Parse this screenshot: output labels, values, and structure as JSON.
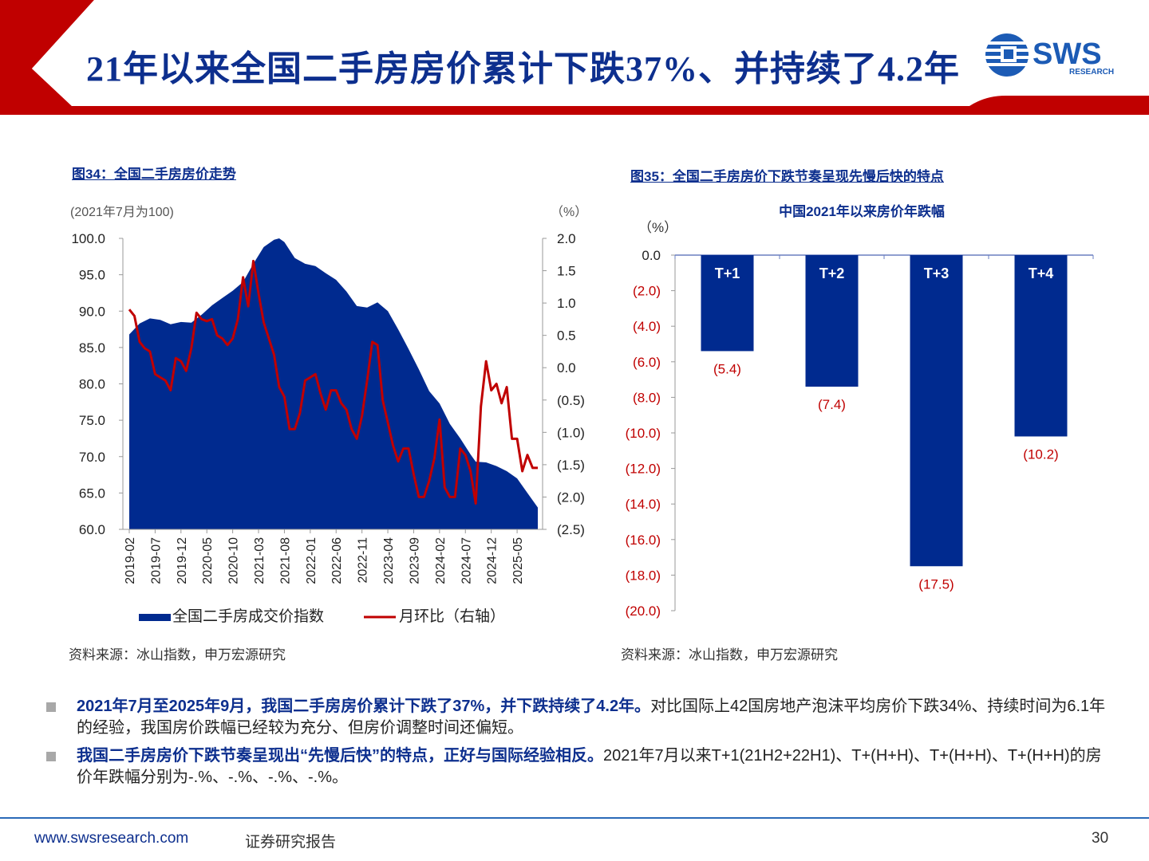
{
  "header": {
    "title": "21年以来全国二手房房价累计下跌37%、并持续了4.2年",
    "logo_text": "SWS",
    "logo_subtext": "RESEARCH",
    "accent_color": "#c00000",
    "brand_color": "#0d2f8e"
  },
  "chart_data": [
    {
      "figure_title": "图34：全国二手房房价走势",
      "type": "area",
      "left_unit_label": "(2021年7月为100)",
      "right_unit_label": "（%）",
      "ylim": [
        60,
        100
      ],
      "y2lim": [
        -2.5,
        2.0
      ],
      "y_ticks": [
        "100.0",
        "95.0",
        "90.0",
        "85.0",
        "80.0",
        "75.0",
        "70.0",
        "65.0",
        "60.0"
      ],
      "y2_ticks": [
        "2.0",
        "1.5",
        "1.0",
        "0.5",
        "0.0",
        "(0.5)",
        "(1.0)",
        "(1.5)",
        "(2.0)",
        "(2.5)"
      ],
      "x_ticks": [
        "2019-02",
        "2019-07",
        "2019-12",
        "2020-05",
        "2020-10",
        "2021-03",
        "2021-08",
        "2022-01",
        "2022-06",
        "2022-11",
        "2023-04",
        "2023-09",
        "2024-02",
        "2024-07",
        "2024-12",
        "2025-05"
      ],
      "x_start": "2019-02",
      "x_end": "2025-09",
      "series": [
        {
          "name": "全国二手房成交价指数",
          "kind": "area",
          "axis": "left",
          "color": "#002a8f",
          "points": [
            [
              "2019-02",
              86.8
            ],
            [
              "2019-04",
              88.3
            ],
            [
              "2019-06",
              89.0
            ],
            [
              "2019-08",
              88.8
            ],
            [
              "2019-10",
              88.2
            ],
            [
              "2019-12",
              88.5
            ],
            [
              "2020-02",
              88.4
            ],
            [
              "2020-04",
              89.5
            ],
            [
              "2020-06",
              90.8
            ],
            [
              "2020-08",
              91.8
            ],
            [
              "2020-10",
              92.8
            ],
            [
              "2020-12",
              94.0
            ],
            [
              "2021-02",
              96.5
            ],
            [
              "2021-04",
              98.8
            ],
            [
              "2021-06",
              99.8
            ],
            [
              "2021-07",
              100.0
            ],
            [
              "2021-08",
              99.5
            ],
            [
              "2021-10",
              97.3
            ],
            [
              "2021-12",
              96.5
            ],
            [
              "2022-02",
              96.2
            ],
            [
              "2022-04",
              95.2
            ],
            [
              "2022-06",
              94.3
            ],
            [
              "2022-08",
              92.7
            ],
            [
              "2022-10",
              90.7
            ],
            [
              "2022-12",
              90.5
            ],
            [
              "2023-02",
              91.2
            ],
            [
              "2023-04",
              90.0
            ],
            [
              "2023-06",
              87.5
            ],
            [
              "2023-08",
              84.8
            ],
            [
              "2023-10",
              82.0
            ],
            [
              "2023-12",
              79.0
            ],
            [
              "2024-02",
              77.3
            ],
            [
              "2024-04",
              74.5
            ],
            [
              "2024-06",
              72.5
            ],
            [
              "2024-08",
              70.3
            ],
            [
              "2024-09",
              69.3
            ],
            [
              "2024-11",
              69.2
            ],
            [
              "2025-01",
              68.7
            ],
            [
              "2025-03",
              68.0
            ],
            [
              "2025-05",
              67.0
            ],
            [
              "2025-07",
              65.0
            ],
            [
              "2025-09",
              63.0
            ]
          ]
        },
        {
          "name": "月环比（右轴）",
          "kind": "line",
          "axis": "right",
          "color": "#c00000",
          "points": [
            [
              "2019-02",
              0.9
            ],
            [
              "2019-03",
              0.8
            ],
            [
              "2019-04",
              0.4
            ],
            [
              "2019-05",
              0.3
            ],
            [
              "2019-06",
              0.25
            ],
            [
              "2019-07",
              -0.1
            ],
            [
              "2019-08",
              -0.15
            ],
            [
              "2019-09",
              -0.2
            ],
            [
              "2019-10",
              -0.35
            ],
            [
              "2019-11",
              0.15
            ],
            [
              "2019-12",
              0.1
            ],
            [
              "2020-01",
              -0.05
            ],
            [
              "2020-02",
              0.3
            ],
            [
              "2020-03",
              0.85
            ],
            [
              "2020-04",
              0.75
            ],
            [
              "2020-05",
              0.72
            ],
            [
              "2020-06",
              0.75
            ],
            [
              "2020-07",
              0.5
            ],
            [
              "2020-08",
              0.45
            ],
            [
              "2020-09",
              0.35
            ],
            [
              "2020-10",
              0.45
            ],
            [
              "2020-11",
              0.75
            ],
            [
              "2020-12",
              1.4
            ],
            [
              "2021-01",
              0.95
            ],
            [
              "2021-02",
              1.65
            ],
            [
              "2021-03",
              1.15
            ],
            [
              "2021-04",
              0.7
            ],
            [
              "2021-05",
              0.45
            ],
            [
              "2021-06",
              0.2
            ],
            [
              "2021-07",
              -0.3
            ],
            [
              "2021-08",
              -0.45
            ],
            [
              "2021-09",
              -0.95
            ],
            [
              "2021-10",
              -0.95
            ],
            [
              "2021-11",
              -0.7
            ],
            [
              "2021-12",
              -0.2
            ],
            [
              "2022-01",
              -0.15
            ],
            [
              "2022-02",
              -0.1
            ],
            [
              "2022-03",
              -0.4
            ],
            [
              "2022-04",
              -0.65
            ],
            [
              "2022-05",
              -0.35
            ],
            [
              "2022-06",
              -0.35
            ],
            [
              "2022-07",
              -0.55
            ],
            [
              "2022-08",
              -0.65
            ],
            [
              "2022-09",
              -0.95
            ],
            [
              "2022-10",
              -1.1
            ],
            [
              "2022-11",
              -0.75
            ],
            [
              "2022-12",
              -0.2
            ],
            [
              "2023-01",
              0.4
            ],
            [
              "2023-02",
              0.35
            ],
            [
              "2023-03",
              -0.5
            ],
            [
              "2023-04",
              -0.85
            ],
            [
              "2023-05",
              -1.2
            ],
            [
              "2023-06",
              -1.45
            ],
            [
              "2023-07",
              -1.25
            ],
            [
              "2023-08",
              -1.25
            ],
            [
              "2023-09",
              -1.65
            ],
            [
              "2023-10",
              -2.0
            ],
            [
              "2023-11",
              -2.0
            ],
            [
              "2023-12",
              -1.75
            ],
            [
              "2024-01",
              -1.4
            ],
            [
              "2024-02",
              -0.8
            ],
            [
              "2024-03",
              -1.85
            ],
            [
              "2024-04",
              -2.0
            ],
            [
              "2024-05",
              -2.0
            ],
            [
              "2024-06",
              -1.25
            ],
            [
              "2024-07",
              -1.35
            ],
            [
              "2024-08",
              -1.6
            ],
            [
              "2024-09",
              -2.1
            ],
            [
              "2024-10",
              -0.6
            ],
            [
              "2024-11",
              0.1
            ],
            [
              "2024-12",
              -0.35
            ],
            [
              "2025-01",
              -0.25
            ],
            [
              "2025-02",
              -0.55
            ],
            [
              "2025-03",
              -0.3
            ],
            [
              "2025-04",
              -1.1
            ],
            [
              "2025-05",
              -1.1
            ],
            [
              "2025-06",
              -1.6
            ],
            [
              "2025-07",
              -1.35
            ],
            [
              "2025-08",
              -1.55
            ],
            [
              "2025-09",
              -1.55
            ]
          ]
        }
      ],
      "source": "资料来源：冰山指数，申万宏源研究"
    },
    {
      "figure_title": "图35：全国二手房房价下跌节奏呈现先慢后快的特点",
      "type": "bar",
      "title": "中国2021年以来房价年跌幅",
      "unit_label": "（%）",
      "ylim": [
        -20,
        0
      ],
      "y_ticks": [
        "0.0",
        "(2.0)",
        "(4.0)",
        "(6.0)",
        "(8.0)",
        "(10.0)",
        "(12.0)",
        "(14.0)",
        "(16.0)",
        "(18.0)",
        "(20.0)"
      ],
      "categories": [
        "T+1",
        "T+2",
        "T+3",
        "T+4"
      ],
      "values": [
        -5.4,
        -7.4,
        -17.5,
        -10.2
      ],
      "value_labels": [
        "(5.4)",
        "(7.4)",
        "(17.5)",
        "(10.2)"
      ],
      "bar_color": "#002a8f",
      "label_color": "#c00000",
      "source": "资料来源：冰山指数，申万宏源研究"
    }
  ],
  "bullets": [
    {
      "bold": "2021年7月至2025年9月，我国二手房房价累计下跌了37%，并下跌持续了4.2年。",
      "text": "对比国际上42国房地产泡沫平均房价下跌34%、持续时间为6.1年的经验，我国房价跌幅已经较为充分、但房价调整时间还偏短。"
    },
    {
      "bold": "我国二手房房价下跌节奏呈现出“先慢后快”的特点，正好与国际经验相反。",
      "text": "2021年7月以来T+1(21H2+22H1)、T+(H+H)、T+(H+H)、T+(H+H)的房价年跌幅分别为-.%、-.%、-.%、-.%。"
    }
  ],
  "footer": {
    "url": "www.swsresearch.com",
    "report_type": "证券研究报告",
    "page_number": "30"
  }
}
